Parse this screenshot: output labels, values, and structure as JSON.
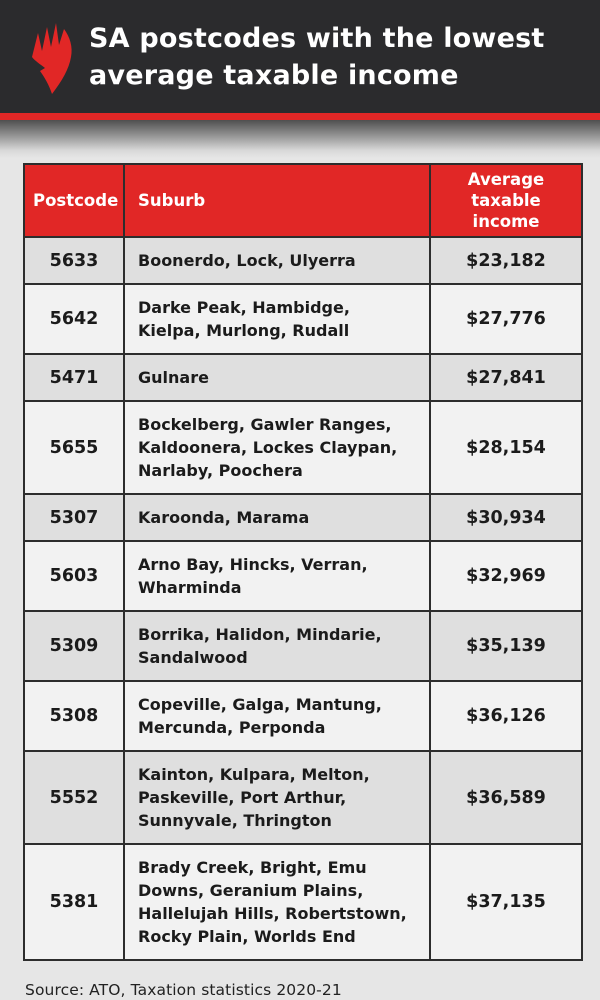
{
  "header": {
    "title_line1": "SA postcodes with the lowest",
    "title_line2": "average taxable income",
    "logo": "sbs-mercury-logo"
  },
  "colors": {
    "brand_red": "#e12726",
    "header_bg": "#2b2b2d",
    "page_bg": "#e6e6e6",
    "row_gray": "#dfdfdf",
    "row_light": "#f2f2f2",
    "border": "#2d2d2d",
    "text_dark": "#1b1b1b",
    "header_text": "#ffffff"
  },
  "chart_data": {
    "type": "table",
    "title": "SA postcodes with the lowest average taxable income",
    "columns": [
      "Postcode",
      "Suburb",
      "Average taxable income"
    ],
    "rows": [
      [
        "5633",
        "Boonerdo, Lock, Ulyerra",
        "$23,182"
      ],
      [
        "5642",
        "Darke Peak, Hambidge, Kielpa, Murlong, Rudall",
        "$27,776"
      ],
      [
        "5471",
        "Gulnare",
        "$27,841"
      ],
      [
        "5655",
        "Bockelberg, Gawler Ranges, Kaldoonera, Lockes Claypan, Narlaby, Poochera",
        "$28,154"
      ],
      [
        "5307",
        "Karoonda, Marama",
        "$30,934"
      ],
      [
        "5603",
        "Arno Bay, Hincks, Verran, Wharminda",
        "$32,969"
      ],
      [
        "5309",
        "Borrika, Halidon, Mindarie, Sandalwood",
        "$35,139"
      ],
      [
        "5308",
        "Copeville, Galga, Mantung, Mercunda, Perponda",
        "$36,126"
      ],
      [
        "5552",
        "Kainton, Kulpara, Melton, Paskeville, Port Arthur, Sunnyvale, Thrington",
        "$36,589"
      ],
      [
        "5381",
        "Brady Creek, Bright, Emu Downs, Geranium Plains, Hallelujah Hills, Robertstown, Rocky Plain, Worlds End",
        "$37,135"
      ]
    ],
    "income_values": [
      23182,
      27776,
      27841,
      28154,
      30934,
      32969,
      35139,
      36126,
      36589,
      37135
    ],
    "source": "Source: ATO, Taxation statistics 2020-21"
  },
  "footer": {
    "source": "Source: ATO, Taxation statistics 2020-21"
  }
}
